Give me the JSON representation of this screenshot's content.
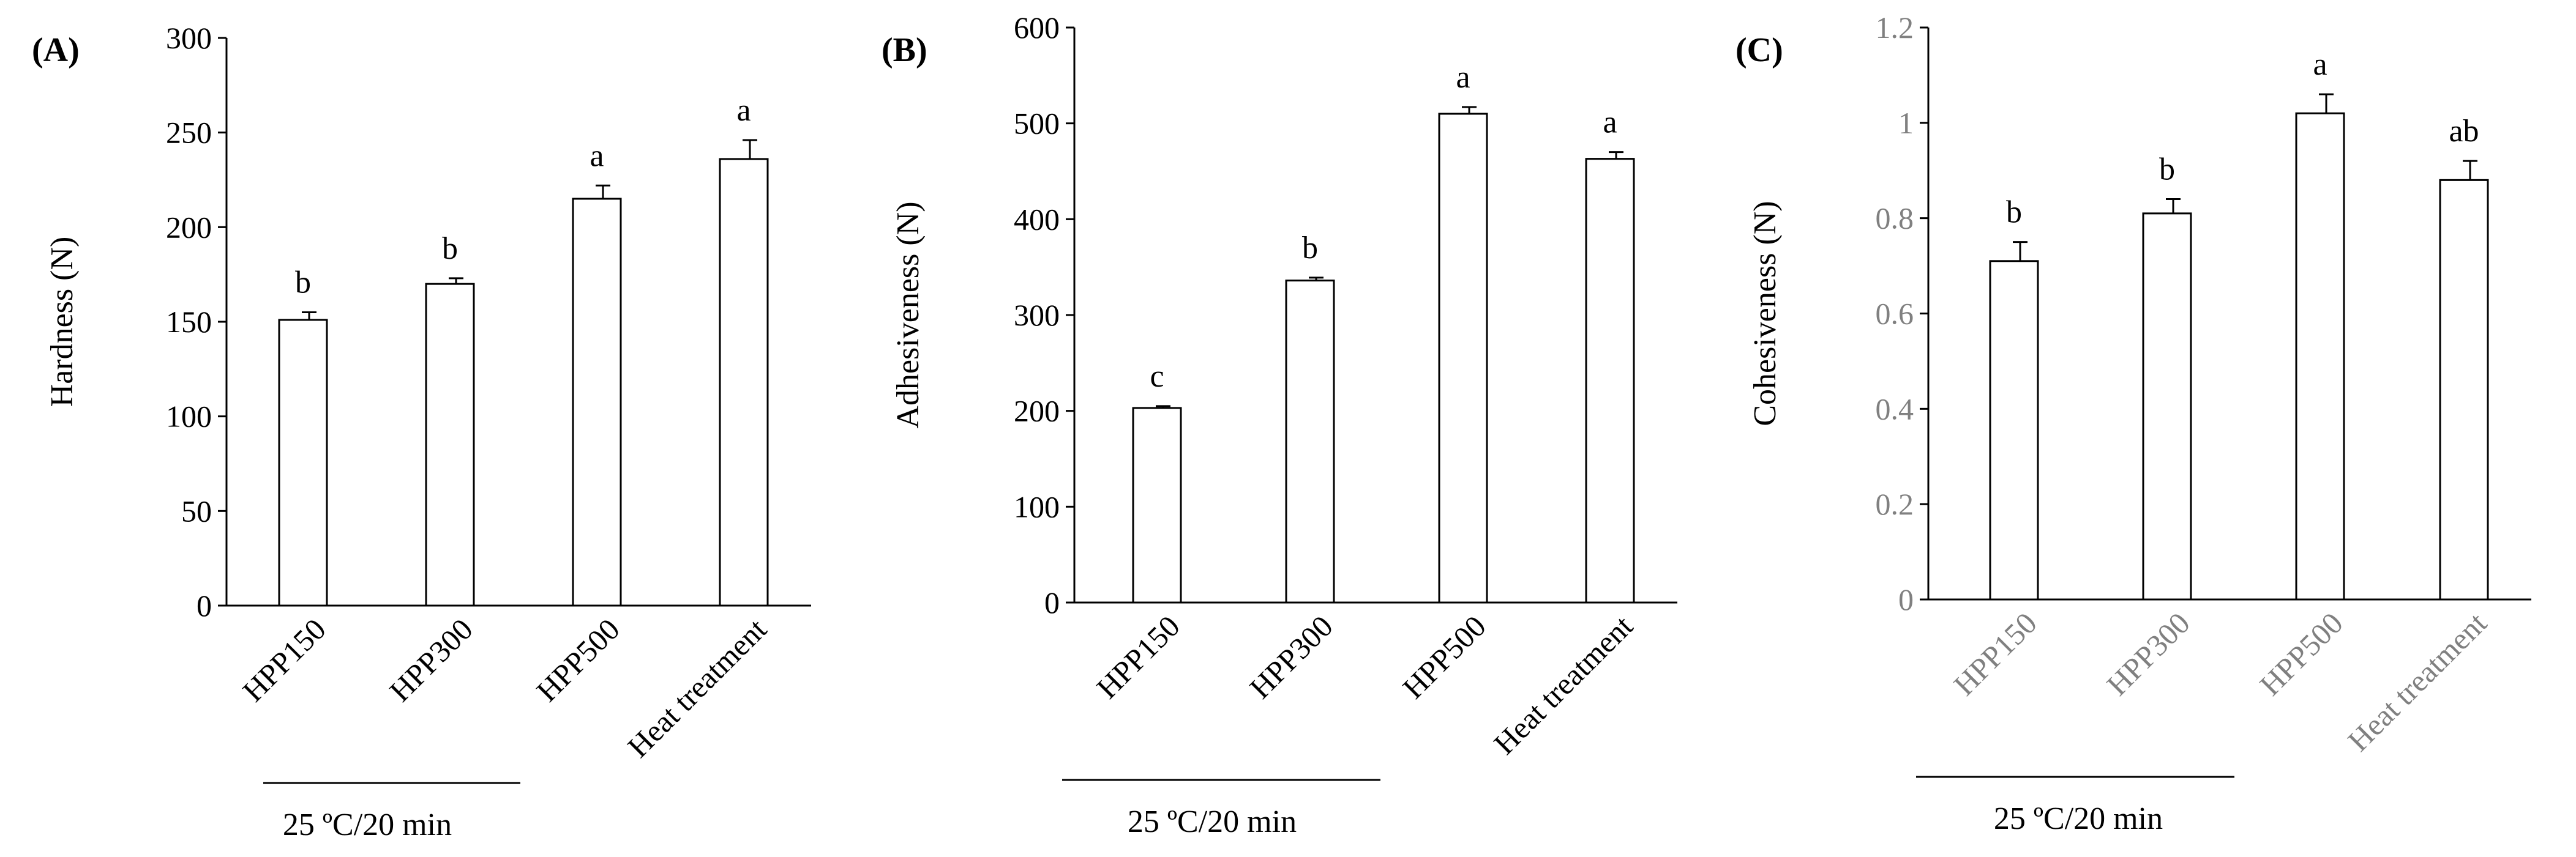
{
  "chart_data": [
    {
      "panel": "(A)",
      "type": "bar",
      "categories": [
        "HPP150",
        "HPP300",
        "HPP500",
        "Heat treatment"
      ],
      "values": [
        151,
        170,
        215,
        236
      ],
      "errors": [
        4,
        3,
        7,
        10
      ],
      "significance": [
        "b",
        "b",
        "a",
        "a"
      ],
      "ylabel": "Hardness (N)",
      "ylim": [
        0,
        300
      ],
      "yticks": [
        "0",
        "50",
        "100",
        "150",
        "200",
        "250",
        "300"
      ],
      "tick_values": [
        0,
        50,
        100,
        150,
        200,
        250,
        300
      ],
      "group_label": "25 ºC/20 min",
      "grid": false,
      "tick_color": "#000000"
    },
    {
      "panel": "(B)",
      "type": "bar",
      "categories": [
        "HPP150",
        "HPP300",
        "HPP500",
        "Heat treatment"
      ],
      "values": [
        203,
        336,
        510,
        463
      ],
      "errors": [
        2,
        3,
        7,
        7
      ],
      "significance": [
        "c",
        "b",
        "a",
        "a"
      ],
      "ylabel": "Adhesiveness (N)",
      "ylim": [
        0,
        600
      ],
      "yticks": [
        "0",
        "100",
        "200",
        "300",
        "400",
        "500",
        "600"
      ],
      "tick_values": [
        0,
        100,
        200,
        300,
        400,
        500,
        600
      ],
      "group_label": "25 ºC/20 min",
      "grid": false,
      "tick_color": "#000000"
    },
    {
      "panel": "(C)",
      "type": "bar",
      "categories": [
        "HPP150",
        "HPP300",
        "HPP500",
        "Heat treatment"
      ],
      "values": [
        0.71,
        0.81,
        1.02,
        0.88
      ],
      "errors": [
        0.04,
        0.03,
        0.04,
        0.04
      ],
      "significance": [
        "b",
        "b",
        "a",
        "ab"
      ],
      "ylabel": "Cohesiveness (N)",
      "ylim": [
        0,
        1.2
      ],
      "yticks": [
        "0",
        "0.2",
        "0.4",
        "0.6",
        "0.8",
        "1",
        "1.2"
      ],
      "tick_values": [
        0,
        0.2,
        0.4,
        0.6,
        0.8,
        1.0,
        1.2
      ],
      "group_label": "25 ºC/20 min",
      "grid": false,
      "tick_color": "#808080"
    }
  ]
}
